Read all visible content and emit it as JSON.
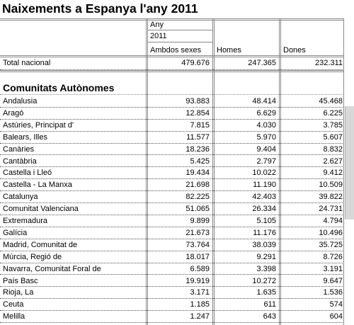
{
  "title": "Naixements a Espanya l'any 2011",
  "header": {
    "any_label": "Any",
    "year": "2011",
    "col1": "Ambdos sexes",
    "col2": "Homes",
    "col3": "Dones"
  },
  "total": {
    "label": "Total nacional",
    "both": "479.676",
    "men": "247.365",
    "women": "232.311"
  },
  "section_title": "Comunitats Autònomes",
  "rows": [
    {
      "label": "Andalusia",
      "both": "93.883",
      "men": "48.414",
      "women": "45.468"
    },
    {
      "label": "Aragó",
      "both": "12.854",
      "men": "6.629",
      "women": "6.225"
    },
    {
      "label": "Astúries, Principat d'",
      "both": "7.815",
      "men": "4.030",
      "women": "3.785"
    },
    {
      "label": "Balears, Illes",
      "both": "11.577",
      "men": "5.970",
      "women": "5.607"
    },
    {
      "label": "Canàries",
      "both": "18.236",
      "men": "9.404",
      "women": "8.832"
    },
    {
      "label": "Cantàbria",
      "both": "5.425",
      "men": "2.797",
      "women": "2.627"
    },
    {
      "label": "Castella i Lleó",
      "both": "19.434",
      "men": "10.022",
      "women": "9.412"
    },
    {
      "label": "Castella - La Manxa",
      "both": "21.698",
      "men": "11.190",
      "women": "10.509"
    },
    {
      "label": "Catalunya",
      "both": "82.225",
      "men": "42.403",
      "women": "39.822"
    },
    {
      "label": "Comunitat Valenciana",
      "both": "51.065",
      "men": "26.334",
      "women": "24.731"
    },
    {
      "label": "Extremadura",
      "both": "9.899",
      "men": "5.105",
      "women": "4.794"
    },
    {
      "label": "Galícia",
      "both": "21.673",
      "men": "11.176",
      "women": "10.496"
    },
    {
      "label": "Madrid, Comunitat de",
      "both": "73.764",
      "men": "38.039",
      "women": "35.725"
    },
    {
      "label": "Múrcia, Regió de",
      "both": "18.017",
      "men": "9.291",
      "women": "8.726"
    },
    {
      "label": "Navarra, Comunitat Foral de",
      "both": "6.589",
      "men": "3.398",
      "women": "3.191"
    },
    {
      "label": "País Basc",
      "both": "19.919",
      "men": "10.272",
      "women": "9.647"
    },
    {
      "label": "Rioja, La",
      "both": "3.171",
      "men": "1.635",
      "women": "1.536"
    },
    {
      "label": "Ceuta",
      "both": "1.185",
      "men": "611",
      "women": "574"
    },
    {
      "label": "Melilla",
      "both": "1.247",
      "men": "643",
      "women": "604"
    }
  ]
}
